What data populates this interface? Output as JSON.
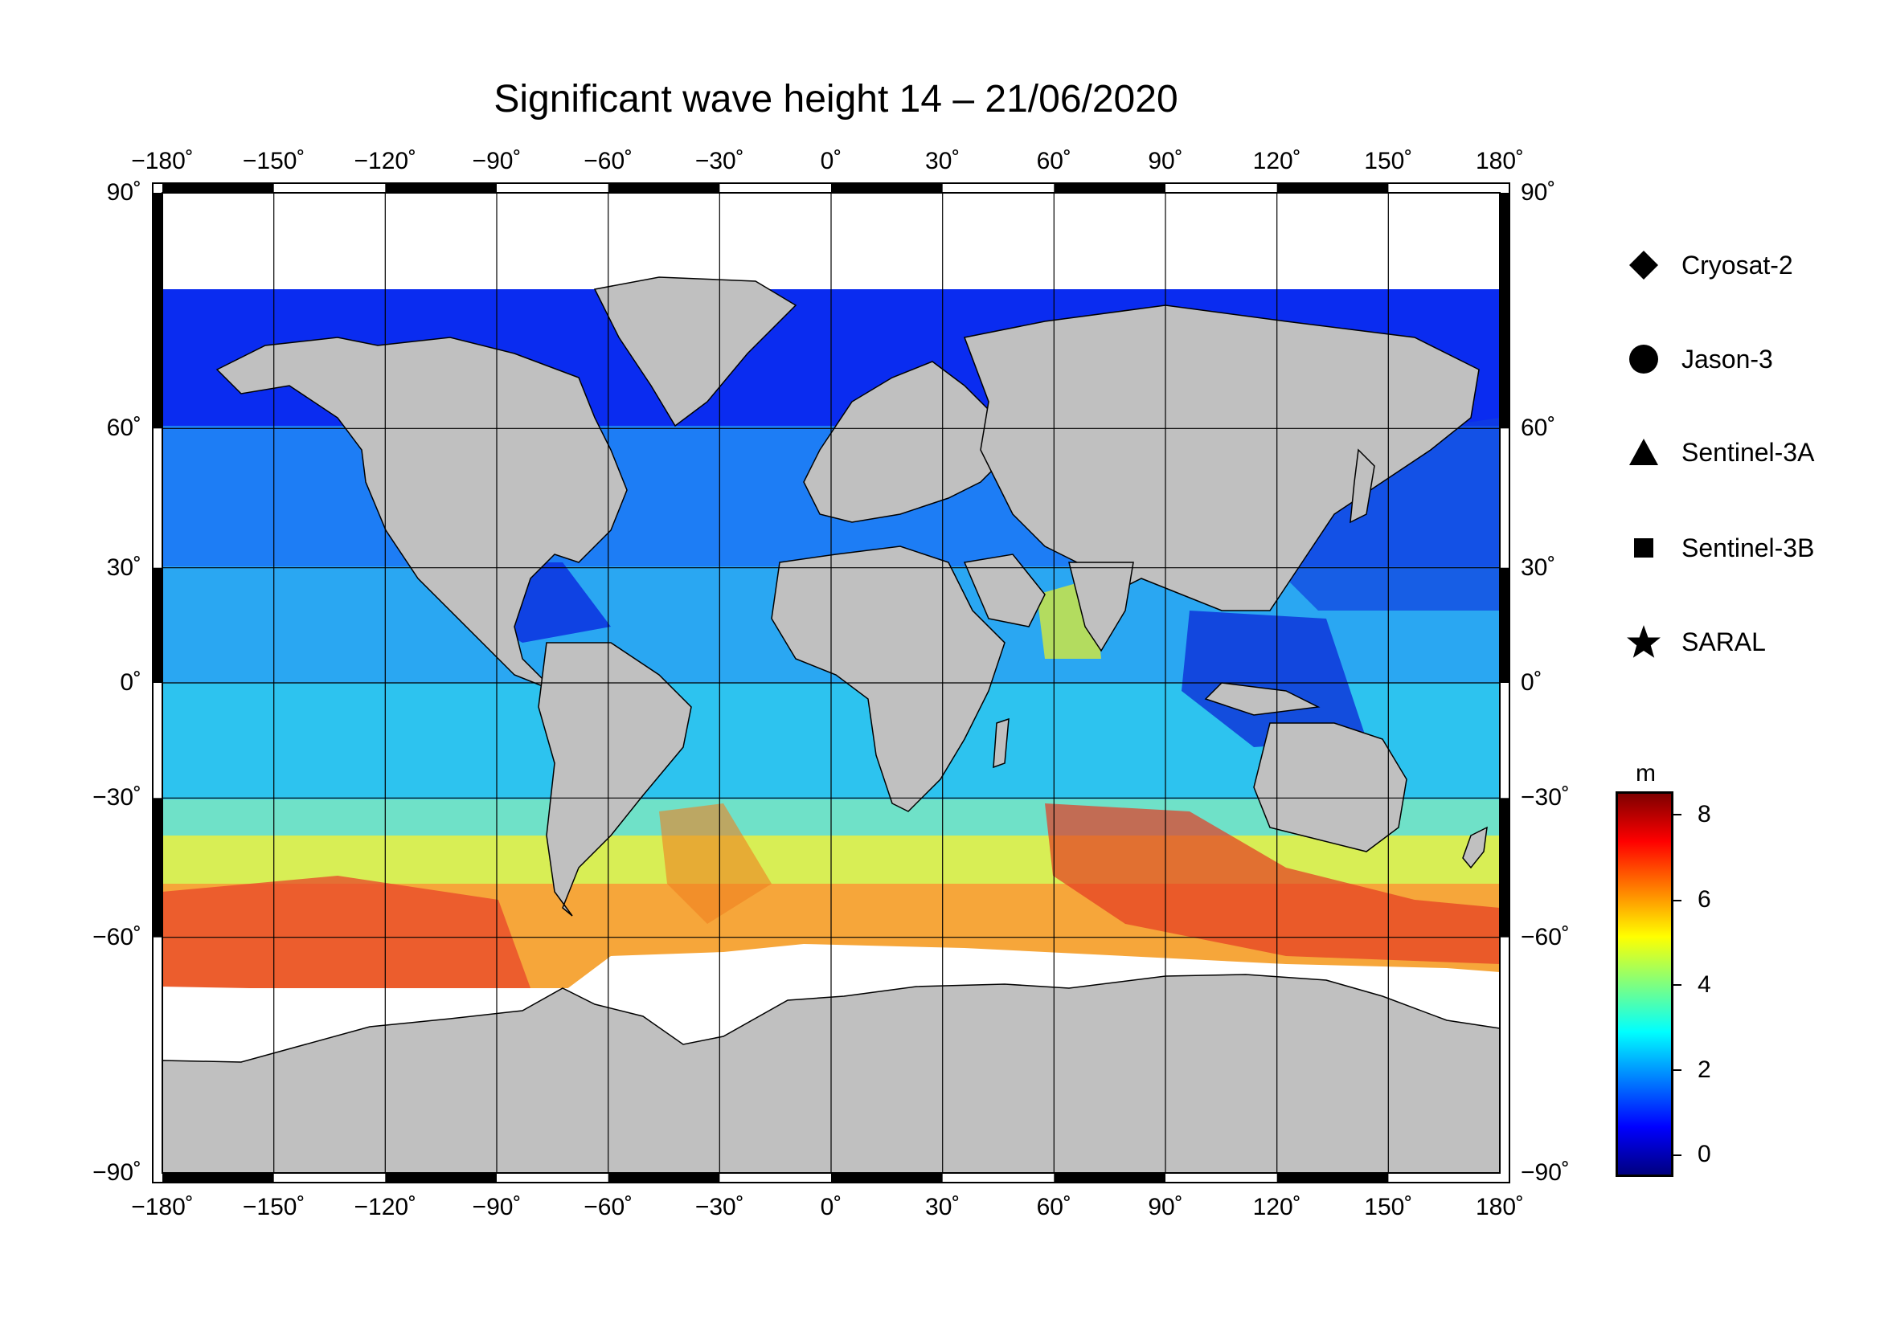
{
  "title": "Significant wave height 14 – 21/06/2020",
  "map": {
    "lon_range": [
      -180,
      180
    ],
    "lat_range": [
      -90,
      90
    ],
    "lon_ticks": [
      "−180˚",
      "−150˚",
      "−120˚",
      "−90˚",
      "−60˚",
      "−30˚",
      "0˚",
      "30˚",
      "60˚",
      "90˚",
      "120˚",
      "150˚",
      "180˚"
    ],
    "lat_ticks_left": [
      "90˚",
      "60˚",
      "30˚",
      "0˚",
      "−30˚",
      "−60˚",
      "−90˚"
    ],
    "lat_ticks_right": [
      "90˚",
      "60˚",
      "30˚",
      "0˚",
      "−30˚",
      "−60˚",
      "−90˚"
    ],
    "grid": true,
    "land_color": "#c0c0c0",
    "ice_color": "#ffffff"
  },
  "legend": {
    "placement": "right",
    "items": [
      {
        "label": "Cryosat-2",
        "icon": "diamond-icon"
      },
      {
        "label": "Jason-3",
        "icon": "circle-icon"
      },
      {
        "label": "Sentinel-3A",
        "icon": "triangle-icon"
      },
      {
        "label": "Sentinel-3B",
        "icon": "square-icon"
      },
      {
        "label": "SARAL",
        "icon": "star-icon"
      }
    ]
  },
  "colorbar": {
    "unit": "m",
    "ticks": [
      "8",
      "6",
      "4",
      "2",
      "0"
    ],
    "range": [
      -0.5,
      8.5
    ],
    "colors": [
      "#00007f",
      "#0000ff",
      "#007fff",
      "#00ffff",
      "#7fff7f",
      "#ffff00",
      "#ff7f00",
      "#ff0000",
      "#7f0000"
    ]
  },
  "chart_data": {
    "type": "heatmap",
    "variable": "Significant wave height",
    "unit": "m",
    "zones": [
      {
        "lat": [
          60,
          80
        ],
        "swh": 1.0
      },
      {
        "lat": [
          30,
          60
        ],
        "swh": 1.8
      },
      {
        "lat": [
          0,
          30
        ],
        "swh": 2.3
      },
      {
        "lat": [
          -30,
          0
        ],
        "swh": 2.8
      },
      {
        "lat": [
          -45,
          -30
        ],
        "swh": 4.0
      },
      {
        "lat": [
          -65,
          -45
        ],
        "swh": 5.5
      }
    ]
  }
}
